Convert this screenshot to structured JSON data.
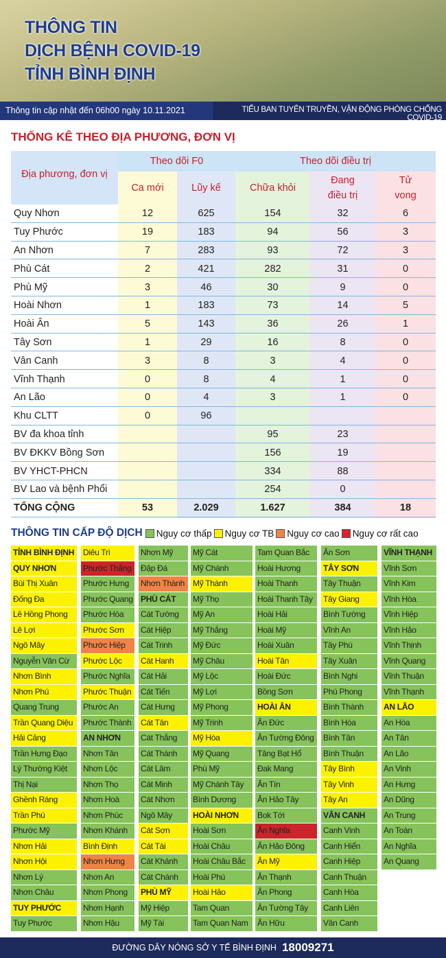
{
  "header": {
    "title_lines": [
      "THÔNG TIN",
      "DỊCH BỆNH COVID-19",
      "TỈNH BÌNH ĐỊNH"
    ],
    "update": "Thông tin cập nhật đến 06h00 ngày 10.11.2021",
    "source": "TIỂU BAN TUYÊN TRUYỀN, VẬN ĐỘNG PHÒNG CHỐNG COVID-19"
  },
  "table": {
    "title": "THỐNG KÊ THEO ĐỊA PHƯƠNG, ĐƠN VỊ",
    "name_header": "Địa phương, đơn vị",
    "group_headers": [
      "Theo dõi F0",
      "Theo dõi điều trị"
    ],
    "columns": [
      "Ca mới",
      "Lũy kế",
      "Chữa khỏi",
      "Đang điều trị",
      "Tử vong"
    ],
    "column_colors": [
      "#fdfbd6",
      "#dfe7f6",
      "#e3f3dc",
      "#ece5f3",
      "#fbe1e4"
    ],
    "rows": [
      {
        "name": "Quy Nhơn",
        "values": [
          12,
          625,
          154,
          32,
          6
        ]
      },
      {
        "name": "Tuy Phước",
        "values": [
          19,
          183,
          94,
          56,
          3
        ]
      },
      {
        "name": "An Nhơn",
        "values": [
          7,
          283,
          93,
          72,
          3
        ]
      },
      {
        "name": "Phù Cát",
        "values": [
          2,
          421,
          282,
          31,
          0
        ]
      },
      {
        "name": "Phù Mỹ",
        "values": [
          3,
          46,
          30,
          9,
          0
        ]
      },
      {
        "name": "Hoài Nhơn",
        "values": [
          1,
          183,
          73,
          14,
          5
        ]
      },
      {
        "name": "Hoài Ân",
        "values": [
          5,
          143,
          36,
          26,
          1
        ]
      },
      {
        "name": "Tây Sơn",
        "values": [
          1,
          29,
          16,
          8,
          0
        ]
      },
      {
        "name": "Vân Canh",
        "values": [
          3,
          8,
          3,
          4,
          0
        ]
      },
      {
        "name": "Vĩnh Thạnh",
        "values": [
          0,
          8,
          4,
          1,
          0
        ]
      },
      {
        "name": "An Lão",
        "values": [
          0,
          4,
          3,
          1,
          0
        ]
      },
      {
        "name": "Khu CLTT",
        "values": [
          0,
          96,
          null,
          null,
          null
        ]
      },
      {
        "name": "BV đa khoa tỉnh",
        "values": [
          null,
          null,
          95,
          23,
          null
        ]
      },
      {
        "name": "BV ĐKKV Bồng Sơn",
        "values": [
          null,
          null,
          156,
          19,
          null
        ]
      },
      {
        "name": "BV YHCT-PHCN",
        "values": [
          null,
          null,
          334,
          88,
          null
        ]
      },
      {
        "name": "BV Lao và bệnh Phổi",
        "values": [
          null,
          null,
          254,
          0,
          null
        ]
      }
    ],
    "total": {
      "name": "TỔNG CỘNG",
      "values": [
        53,
        "2.029",
        "1.627",
        384,
        18
      ]
    }
  },
  "levels": {
    "title": "THÔNG TIN CẤP ĐỘ DỊCH",
    "legend": [
      {
        "label": "Nguy cơ thấp",
        "color": "#86c35a"
      },
      {
        "label": "Nguy cơ TB",
        "color": "#fcf200"
      },
      {
        "label": "Nguy cơ cao",
        "color": "#ee8445"
      },
      {
        "label": "Nguy cơ rất cao",
        "color": "#d8242a"
      }
    ],
    "columns": [
      [
        {
          "name": "TỈNH BÌNH ĐỊNH",
          "color": "#fcf200",
          "bold": true
        },
        {
          "name": "QUY NHƠN",
          "color": "#fcf200",
          "bold": true
        },
        {
          "name": "Bùi Thị Xuân",
          "color": "#fcf200"
        },
        {
          "name": "Đống Đa",
          "color": "#fcf200"
        },
        {
          "name": "Lê Hồng Phong",
          "color": "#fcf200"
        },
        {
          "name": "Lê Lợi",
          "color": "#fcf200"
        },
        {
          "name": "Ngô Mây",
          "color": "#fcf200"
        },
        {
          "name": "Nguyễn Văn Cừ",
          "color": "#86c35a"
        },
        {
          "name": "Nhơn Bình",
          "color": "#fcf200"
        },
        {
          "name": "Nhơn Phú",
          "color": "#fcf200"
        },
        {
          "name": "Quang Trung",
          "color": "#86c35a"
        },
        {
          "name": "Trần Quang Diệu",
          "color": "#fcf200"
        },
        {
          "name": "Hải Cảng",
          "color": "#fcf200"
        },
        {
          "name": "Trần Hưng Đạo",
          "color": "#86c35a"
        },
        {
          "name": "Lý Thường Kiệt",
          "color": "#86c35a"
        },
        {
          "name": "Thị Nại",
          "color": "#86c35a"
        },
        {
          "name": "Ghềnh Ráng",
          "color": "#fcf200"
        },
        {
          "name": "Trần Phú",
          "color": "#fcf200"
        },
        {
          "name": "Phước Mỹ",
          "color": "#86c35a"
        },
        {
          "name": "Nhơn Hải",
          "color": "#fcf200"
        },
        {
          "name": "Nhơn Hội",
          "color": "#fcf200"
        },
        {
          "name": "Nhơn Lý",
          "color": "#86c35a"
        },
        {
          "name": "Nhơn Châu",
          "color": "#86c35a"
        },
        {
          "name": "TUY PHƯỚC",
          "color": "#fcf200",
          "bold": true
        },
        {
          "name": "Tuy Phước",
          "color": "#86c35a"
        }
      ],
      [
        {
          "name": "Diêu Trì",
          "color": "#fcf200"
        },
        {
          "name": "Phước Thắng",
          "color": "#c9252b"
        },
        {
          "name": "Phước Hưng",
          "color": "#86c35a"
        },
        {
          "name": "Phước Quang",
          "color": "#86c35a"
        },
        {
          "name": "Phước Hòa",
          "color": "#86c35a"
        },
        {
          "name": "Phước Sơn",
          "color": "#fcf200"
        },
        {
          "name": "Phước Hiệp",
          "color": "#ee8445"
        },
        {
          "name": "Phước Lộc",
          "color": "#fcf200"
        },
        {
          "name": "Phước Nghĩa",
          "color": "#86c35a"
        },
        {
          "name": "Phước Thuận",
          "color": "#fcf200"
        },
        {
          "name": "Phước An",
          "color": "#86c35a"
        },
        {
          "name": "Phước Thành",
          "color": "#86c35a"
        },
        {
          "name": "AN NHƠN",
          "color": "#86c35a",
          "bold": true
        },
        {
          "name": "Nhơn Tân",
          "color": "#86c35a"
        },
        {
          "name": "Nhơn Lộc",
          "color": "#86c35a"
        },
        {
          "name": "Nhơn Thọ",
          "color": "#86c35a"
        },
        {
          "name": "Nhơn Hoà",
          "color": "#86c35a"
        },
        {
          "name": "Nhơn Phúc",
          "color": "#86c35a"
        },
        {
          "name": "Nhơn Khánh",
          "color": "#86c35a"
        },
        {
          "name": "Bình Định",
          "color": "#fcf200"
        },
        {
          "name": "Nhơn Hưng",
          "color": "#ee8445"
        },
        {
          "name": "Nhơn An",
          "color": "#86c35a"
        },
        {
          "name": "Nhơn Phong",
          "color": "#86c35a"
        },
        {
          "name": "Nhơn Hạnh",
          "color": "#86c35a"
        },
        {
          "name": "Nhơn Hậu",
          "color": "#86c35a"
        }
      ],
      [
        {
          "name": "Nhơn Mỹ",
          "color": "#86c35a"
        },
        {
          "name": "Đập Đá",
          "color": "#86c35a"
        },
        {
          "name": "Nhơn Thành",
          "color": "#ee8445"
        },
        {
          "name": "PHÙ CÁT",
          "color": "#86c35a",
          "bold": true
        },
        {
          "name": "Cát Tường",
          "color": "#86c35a"
        },
        {
          "name": "Cát Hiệp",
          "color": "#86c35a"
        },
        {
          "name": "Cát Trinh",
          "color": "#86c35a"
        },
        {
          "name": "Cát Hanh",
          "color": "#fcf200"
        },
        {
          "name": "Cát Hải",
          "color": "#86c35a"
        },
        {
          "name": "Cát Tiến",
          "color": "#86c35a"
        },
        {
          "name": "Cát Hưng",
          "color": "#86c35a"
        },
        {
          "name": "Cát Tân",
          "color": "#fcf200"
        },
        {
          "name": "Cát Thắng",
          "color": "#86c35a"
        },
        {
          "name": "Cát Thành",
          "color": "#86c35a"
        },
        {
          "name": "Cát Lâm",
          "color": "#86c35a"
        },
        {
          "name": "Cát Minh",
          "color": "#86c35a"
        },
        {
          "name": "Cát Nhơn",
          "color": "#86c35a"
        },
        {
          "name": "Ngô Mây",
          "color": "#86c35a"
        },
        {
          "name": "Cát Sơn",
          "color": "#fcf200"
        },
        {
          "name": "Cát Tài",
          "color": "#fcf200"
        },
        {
          "name": "Cát Khánh",
          "color": "#86c35a"
        },
        {
          "name": "Cát Chánh",
          "color": "#86c35a"
        },
        {
          "name": "PHÙ MỸ",
          "color": "#fcf200",
          "bold": true
        },
        {
          "name": "Mỹ Hiệp",
          "color": "#86c35a"
        },
        {
          "name": "Mỹ Tài",
          "color": "#86c35a"
        }
      ],
      [
        {
          "name": "Mỹ Cát",
          "color": "#86c35a"
        },
        {
          "name": "Mỹ Chánh",
          "color": "#86c35a"
        },
        {
          "name": "Mỹ Thành",
          "color": "#fcf200"
        },
        {
          "name": "Mỹ Thọ",
          "color": "#86c35a"
        },
        {
          "name": "Mỹ An",
          "color": "#86c35a"
        },
        {
          "name": "Mỹ Thắng",
          "color": "#86c35a"
        },
        {
          "name": "Mỹ Đức",
          "color": "#86c35a"
        },
        {
          "name": "Mỹ Châu",
          "color": "#86c35a"
        },
        {
          "name": "Mỹ Lộc",
          "color": "#86c35a"
        },
        {
          "name": "Mỹ Lợi",
          "color": "#86c35a"
        },
        {
          "name": "Mỹ Phong",
          "color": "#86c35a"
        },
        {
          "name": "Mỹ Trinh",
          "color": "#86c35a"
        },
        {
          "name": "Mỹ Hòa",
          "color": "#fcf200"
        },
        {
          "name": "Mỹ Quang",
          "color": "#86c35a"
        },
        {
          "name": "Phù Mỹ",
          "color": "#86c35a"
        },
        {
          "name": "Mỹ Chánh Tây",
          "color": "#86c35a"
        },
        {
          "name": "Bình Dương",
          "color": "#86c35a"
        },
        {
          "name": "HOÀI NHƠN",
          "color": "#fcf200",
          "bold": true
        },
        {
          "name": "Hoài Sơn",
          "color": "#86c35a"
        },
        {
          "name": "Hoài Châu",
          "color": "#86c35a"
        },
        {
          "name": "Hoài Châu Bắc",
          "color": "#86c35a"
        },
        {
          "name": "Hoài Phú",
          "color": "#86c35a"
        },
        {
          "name": "Hoài Hảo",
          "color": "#fcf200"
        },
        {
          "name": "Tam Quan",
          "color": "#86c35a"
        },
        {
          "name": "Tam Quan Nam",
          "color": "#86c35a"
        }
      ],
      [
        {
          "name": "Tam Quan Bắc",
          "color": "#86c35a"
        },
        {
          "name": "Hoài Hương",
          "color": "#86c35a"
        },
        {
          "name": "Hoài Thanh",
          "color": "#86c35a"
        },
        {
          "name": "Hoài Thanh Tây",
          "color": "#86c35a"
        },
        {
          "name": "Hoài Hải",
          "color": "#86c35a"
        },
        {
          "name": "Hoài Mỹ",
          "color": "#86c35a"
        },
        {
          "name": "Hoài Xuân",
          "color": "#86c35a"
        },
        {
          "name": "Hoài Tân",
          "color": "#fcf200"
        },
        {
          "name": "Hoài Đức",
          "color": "#86c35a"
        },
        {
          "name": "Bồng Sơn",
          "color": "#86c35a"
        },
        {
          "name": "HOÀI ÂN",
          "color": "#fcf200",
          "bold": true
        },
        {
          "name": "Ân Đức",
          "color": "#86c35a"
        },
        {
          "name": "Ân Tường Đông",
          "color": "#86c35a"
        },
        {
          "name": "Tăng Bạt Hổ",
          "color": "#86c35a"
        },
        {
          "name": "Đak Mang",
          "color": "#86c35a"
        },
        {
          "name": "Ân Tín",
          "color": "#86c35a"
        },
        {
          "name": "Ân Hảo Tây",
          "color": "#86c35a"
        },
        {
          "name": "Bok Tới",
          "color": "#86c35a"
        },
        {
          "name": "Ân Nghĩa",
          "color": "#c9252b"
        },
        {
          "name": "Ân Hảo Đông",
          "color": "#86c35a"
        },
        {
          "name": "Ân Mỹ",
          "color": "#fcf200"
        },
        {
          "name": "Ân Thạnh",
          "color": "#86c35a"
        },
        {
          "name": "Ân Phong",
          "color": "#86c35a"
        },
        {
          "name": "Ân Tường Tây",
          "color": "#86c35a"
        },
        {
          "name": "Ân Hữu",
          "color": "#86c35a"
        }
      ],
      [
        {
          "name": "Ân Sơn",
          "color": "#86c35a"
        },
        {
          "name": "TÂY SƠN",
          "color": "#fcf200",
          "bold": true
        },
        {
          "name": "Tây Thuận",
          "color": "#86c35a"
        },
        {
          "name": "Tây Giang",
          "color": "#fcf200"
        },
        {
          "name": "Bình Tường",
          "color": "#86c35a"
        },
        {
          "name": "Vĩnh An",
          "color": "#86c35a"
        },
        {
          "name": "Tây Phú",
          "color": "#86c35a"
        },
        {
          "name": "Tây Xuân",
          "color": "#86c35a"
        },
        {
          "name": "Bình Nghi",
          "color": "#86c35a"
        },
        {
          "name": "Phú Phong",
          "color": "#86c35a"
        },
        {
          "name": "Bình Thành",
          "color": "#86c35a"
        },
        {
          "name": "Bình Hòa",
          "color": "#86c35a"
        },
        {
          "name": "Bình Tân",
          "color": "#86c35a"
        },
        {
          "name": "Bình Thuận",
          "color": "#86c35a"
        },
        {
          "name": "Tây Bình",
          "color": "#fcf200"
        },
        {
          "name": "Tây Vinh",
          "color": "#fcf200"
        },
        {
          "name": "Tây An",
          "color": "#fcf200"
        },
        {
          "name": "VÂN CANH",
          "color": "#86c35a",
          "bold": true
        },
        {
          "name": "Canh Vinh",
          "color": "#86c35a"
        },
        {
          "name": "Canh Hiển",
          "color": "#86c35a"
        },
        {
          "name": "Canh Hiệp",
          "color": "#86c35a"
        },
        {
          "name": "Canh Thuận",
          "color": "#86c35a"
        },
        {
          "name": "Canh Hòa",
          "color": "#86c35a"
        },
        {
          "name": "Canh Liên",
          "color": "#86c35a"
        },
        {
          "name": "Vân Canh",
          "color": "#86c35a"
        }
      ],
      [
        {
          "name": "VĨNH THẠNH",
          "color": "#86c35a",
          "bold": true
        },
        {
          "name": "Vĩnh Sơn",
          "color": "#86c35a"
        },
        {
          "name": "Vĩnh Kim",
          "color": "#86c35a"
        },
        {
          "name": "Vĩnh Hòa",
          "color": "#86c35a"
        },
        {
          "name": "Vĩnh Hiệp",
          "color": "#86c35a"
        },
        {
          "name": "Vĩnh Hảo",
          "color": "#86c35a"
        },
        {
          "name": "Vĩnh Thịnh",
          "color": "#86c35a"
        },
        {
          "name": "Vĩnh Quang",
          "color": "#86c35a"
        },
        {
          "name": "Vĩnh Thuận",
          "color": "#86c35a"
        },
        {
          "name": "Vĩnh Thạnh",
          "color": "#86c35a"
        },
        {
          "name": "AN LÃO",
          "color": "#fcf200",
          "bold": true
        },
        {
          "name": "An Hòa",
          "color": "#86c35a"
        },
        {
          "name": "An Tân",
          "color": "#86c35a"
        },
        {
          "name": "An Lão",
          "color": "#86c35a"
        },
        {
          "name": "An Vinh",
          "color": "#86c35a"
        },
        {
          "name": "An Hưng",
          "color": "#86c35a"
        },
        {
          "name": "An Dũng",
          "color": "#86c35a"
        },
        {
          "name": "An Trung",
          "color": "#86c35a"
        },
        {
          "name": "An Toàn",
          "color": "#86c35a"
        },
        {
          "name": "An Nghĩa",
          "color": "#86c35a"
        },
        {
          "name": "An Quang",
          "color": "#86c35a"
        }
      ]
    ]
  },
  "footer": {
    "hotline_label": "ĐƯỜNG DÂY NÓNG SỞ Y TẾ BÌNH ĐỊNH",
    "hotline": "18009271"
  }
}
